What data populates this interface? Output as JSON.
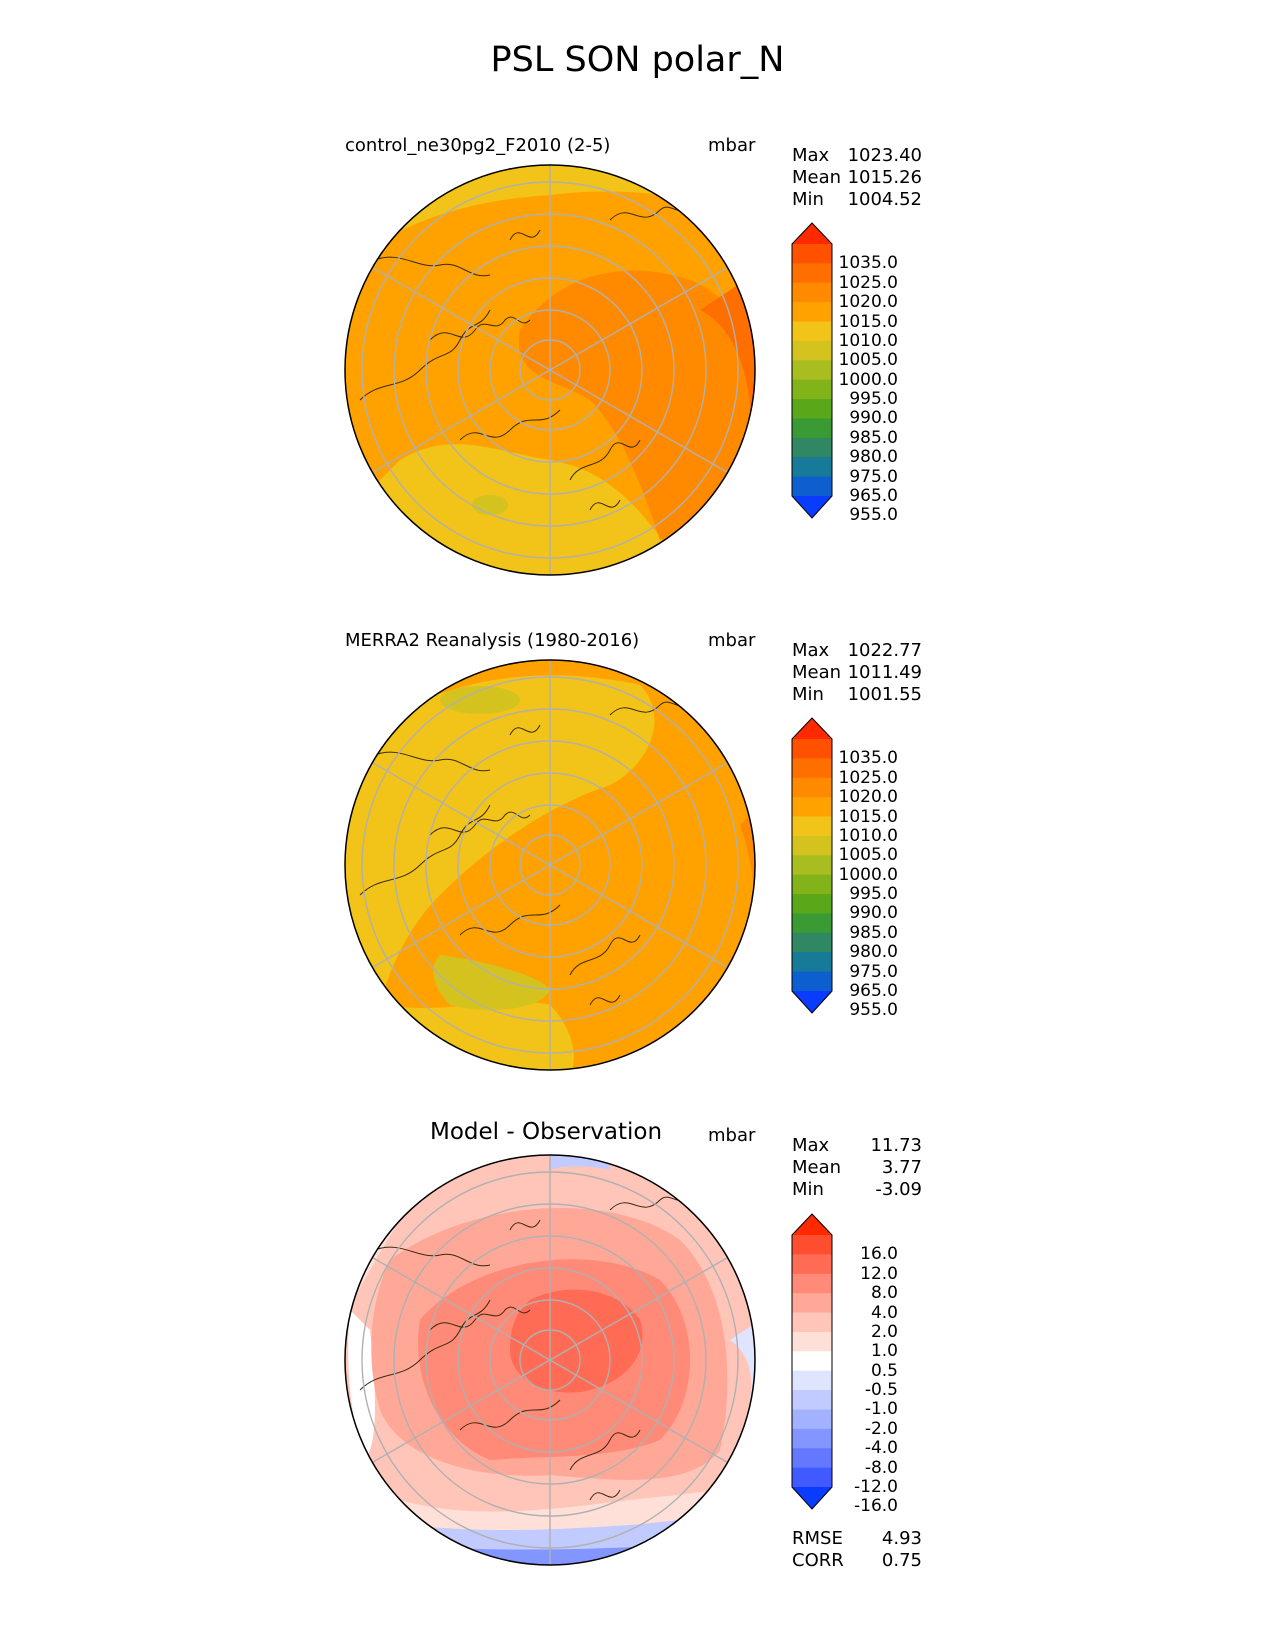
{
  "figure_title": "PSL SON polar_N",
  "panels": [
    {
      "title": "control_ne30pg2_F2010 (2-5)",
      "units": "mbar",
      "stats": {
        "max_label": "Max",
        "max": "1023.40",
        "mean_label": "Mean",
        "mean": "1015.26",
        "min_label": "Min",
        "min": "1004.52"
      },
      "colorbar": {
        "levels": [
          "1035.0",
          "1025.0",
          "1020.0",
          "1015.0",
          "1010.0",
          "1005.0",
          "1000.0",
          "995.0",
          "990.0",
          "985.0",
          "980.0",
          "975.0",
          "965.0",
          "955.0"
        ],
        "colors": [
          "#ff2a00",
          "#ff5100",
          "#ff6f00",
          "#ff8a00",
          "#ffa200",
          "#f2c318",
          "#d4c31f",
          "#a8bd1f",
          "#82b41a",
          "#5aa81a",
          "#3a9a34",
          "#2f8863",
          "#167a98",
          "#0d5fd0",
          "#0a3cff"
        ]
      }
    },
    {
      "title": "MERRA2 Reanalysis (1980-2016)",
      "units": "mbar",
      "stats": {
        "max_label": "Max",
        "max": "1022.77",
        "mean_label": "Mean",
        "mean": "1011.49",
        "min_label": "Min",
        "min": "1001.55"
      },
      "colorbar": {
        "levels": [
          "1035.0",
          "1025.0",
          "1020.0",
          "1015.0",
          "1010.0",
          "1005.0",
          "1000.0",
          "995.0",
          "990.0",
          "985.0",
          "980.0",
          "975.0",
          "965.0",
          "955.0"
        ],
        "colors": [
          "#ff2a00",
          "#ff5100",
          "#ff6f00",
          "#ff8a00",
          "#ffa200",
          "#f2c318",
          "#d4c31f",
          "#a8bd1f",
          "#82b41a",
          "#5aa81a",
          "#3a9a34",
          "#2f8863",
          "#167a98",
          "#0d5fd0",
          "#0a3cff"
        ]
      }
    },
    {
      "title": "Model - Observation",
      "units": "mbar",
      "stats": {
        "max_label": "Max",
        "max": "11.73",
        "mean_label": "Mean",
        "mean": "3.77",
        "min_label": "Min",
        "min": "-3.09"
      },
      "colorbar": {
        "levels": [
          "16.0",
          "12.0",
          "8.0",
          "4.0",
          "2.0",
          "1.0",
          "0.5",
          "-0.5",
          "-1.0",
          "-2.0",
          "-4.0",
          "-8.0",
          "-12.0",
          "-16.0"
        ],
        "colors": [
          "#ff2a00",
          "#ff4d30",
          "#ff6b55",
          "#ff8a78",
          "#ffa898",
          "#ffc5b9",
          "#ffe0d8",
          "#ffffff",
          "#dfe4ff",
          "#c2cbff",
          "#a3b2ff",
          "#8396ff",
          "#6478ff",
          "#405aff",
          "#0a3cff"
        ]
      },
      "extra_stats": {
        "rmse_label": "RMSE",
        "rmse": "4.93",
        "corr_label": "CORR",
        "corr": "0.75"
      }
    }
  ]
}
